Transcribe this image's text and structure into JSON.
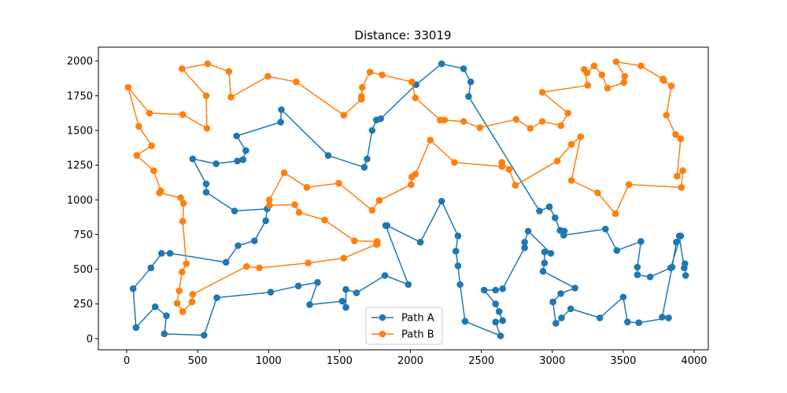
{
  "chart_data": {
    "type": "line",
    "title": "Distance: 33019",
    "xlabel": "",
    "ylabel": "",
    "xlim": [
      -200,
      4100
    ],
    "ylim": [
      -80,
      2100
    ],
    "xticks": [
      0,
      500,
      1000,
      1500,
      2000,
      2500,
      3000,
      3500,
      4000
    ],
    "yticks": [
      0,
      250,
      500,
      750,
      1000,
      1250,
      1500,
      1750,
      2000
    ],
    "grid": false,
    "legend_position": "lower-center",
    "series": [
      {
        "name": "Path A",
        "color": "#1f77b4",
        "points": [
          [
            3940,
            455
          ],
          [
            3935,
            540
          ],
          [
            3930,
            510
          ],
          [
            3895,
            740
          ],
          [
            3875,
            695
          ],
          [
            3845,
            515
          ],
          [
            3775,
            155
          ],
          [
            3820,
            150
          ],
          [
            3610,
            115
          ],
          [
            3530,
            120
          ],
          [
            3500,
            300
          ],
          [
            3335,
            150
          ],
          [
            3130,
            215
          ],
          [
            3065,
            150
          ],
          [
            3025,
            110
          ],
          [
            3005,
            265
          ],
          [
            3060,
            325
          ],
          [
            3160,
            365
          ],
          [
            2935,
            485
          ],
          [
            2945,
            545
          ],
          [
            2945,
            625
          ],
          [
            2990,
            615
          ],
          [
            2830,
            775
          ],
          [
            2805,
            695
          ],
          [
            2805,
            655
          ],
          [
            2650,
            360
          ],
          [
            2600,
            350
          ],
          [
            2520,
            350
          ],
          [
            2600,
            250
          ],
          [
            2625,
            195
          ],
          [
            2650,
            130
          ],
          [
            2600,
            120
          ],
          [
            2635,
            20
          ],
          [
            2385,
            125
          ],
          [
            2350,
            390
          ],
          [
            2335,
            525
          ],
          [
            2320,
            630
          ],
          [
            2335,
            740
          ],
          [
            2220,
            990
          ],
          [
            2070,
            695
          ],
          [
            1835,
            815
          ],
          [
            1825,
            815
          ],
          [
            1985,
            390
          ],
          [
            1820,
            455
          ],
          [
            1620,
            330
          ],
          [
            1545,
            355
          ],
          [
            1545,
            225
          ],
          [
            1520,
            270
          ],
          [
            1290,
            245
          ],
          [
            1345,
            405
          ],
          [
            1210,
            380
          ],
          [
            1015,
            335
          ],
          [
            635,
            295
          ],
          [
            545,
            25
          ],
          [
            265,
            35
          ],
          [
            280,
            165
          ],
          [
            200,
            230
          ],
          [
            65,
            80
          ],
          [
            45,
            360
          ],
          [
            170,
            510
          ],
          [
            245,
            615
          ],
          [
            305,
            615
          ],
          [
            700,
            550
          ],
          [
            785,
            670
          ],
          [
            900,
            705
          ],
          [
            980,
            850
          ],
          [
            990,
            935
          ],
          [
            760,
            920
          ],
          [
            560,
            1055
          ],
          [
            560,
            1115
          ],
          [
            465,
            1295
          ],
          [
            630,
            1260
          ],
          [
            780,
            1280
          ],
          [
            820,
            1290
          ],
          [
            840,
            1355
          ],
          [
            775,
            1460
          ],
          [
            1085,
            1560
          ],
          [
            1090,
            1650
          ],
          [
            1420,
            1320
          ],
          [
            1675,
            1235
          ],
          [
            1695,
            1295
          ],
          [
            1730,
            1500
          ],
          [
            1760,
            1575
          ],
          [
            1790,
            1585
          ],
          [
            2040,
            1830
          ],
          [
            2220,
            1980
          ],
          [
            2375,
            1945
          ],
          [
            2425,
            1850
          ],
          [
            2410,
            1745
          ],
          [
            2910,
            920
          ],
          [
            2980,
            950
          ],
          [
            3020,
            870
          ],
          [
            3055,
            780
          ],
          [
            3085,
            775
          ],
          [
            3080,
            745
          ],
          [
            3375,
            790
          ],
          [
            3455,
            635
          ],
          [
            3625,
            700
          ],
          [
            3600,
            515
          ],
          [
            3600,
            460
          ],
          [
            3690,
            445
          ],
          [
            3835,
            510
          ],
          [
            3905,
            740
          ]
        ]
      },
      {
        "name": "Path B",
        "color": "#ff7f0e",
        "points": [
          [
            1765,
            680
          ],
          [
            1765,
            700
          ],
          [
            1605,
            705
          ],
          [
            1395,
            855
          ],
          [
            1215,
            910
          ],
          [
            1185,
            965
          ],
          [
            1005,
            960
          ],
          [
            1005,
            1000
          ],
          [
            1110,
            1195
          ],
          [
            1270,
            1090
          ],
          [
            1495,
            1120
          ],
          [
            1730,
            925
          ],
          [
            1780,
            995
          ],
          [
            2005,
            1110
          ],
          [
            2010,
            1165
          ],
          [
            2035,
            1185
          ],
          [
            2140,
            1430
          ],
          [
            2310,
            1270
          ],
          [
            2645,
            1240
          ],
          [
            2645,
            1270
          ],
          [
            2695,
            1220
          ],
          [
            2740,
            1105
          ],
          [
            3035,
            1280
          ],
          [
            3135,
            1400
          ],
          [
            3200,
            1455
          ],
          [
            3135,
            1140
          ],
          [
            3320,
            1050
          ],
          [
            3445,
            900
          ],
          [
            3540,
            1110
          ],
          [
            3910,
            1090
          ],
          [
            3920,
            1210
          ],
          [
            3880,
            1170
          ],
          [
            3905,
            1440
          ],
          [
            3870,
            1470
          ],
          [
            3805,
            1610
          ],
          [
            3840,
            1820
          ],
          [
            3785,
            1860
          ],
          [
            3780,
            1870
          ],
          [
            3625,
            1965
          ],
          [
            3450,
            1995
          ],
          [
            3510,
            1890
          ],
          [
            3505,
            1845
          ],
          [
            3390,
            1805
          ],
          [
            3350,
            1900
          ],
          [
            3295,
            1965
          ],
          [
            3245,
            1915
          ],
          [
            3225,
            1940
          ],
          [
            3250,
            1825
          ],
          [
            2930,
            1775
          ],
          [
            3110,
            1625
          ],
          [
            3060,
            1535
          ],
          [
            2930,
            1565
          ],
          [
            2845,
            1515
          ],
          [
            2745,
            1580
          ],
          [
            2490,
            1520
          ],
          [
            2375,
            1565
          ],
          [
            2240,
            1575
          ],
          [
            2210,
            1575
          ],
          [
            2035,
            1735
          ],
          [
            2010,
            1850
          ],
          [
            1800,
            1900
          ],
          [
            1715,
            1920
          ],
          [
            1660,
            1810
          ],
          [
            1655,
            1745
          ],
          [
            1655,
            1725
          ],
          [
            1530,
            1610
          ],
          [
            1195,
            1850
          ],
          [
            995,
            1890
          ],
          [
            735,
            1740
          ],
          [
            720,
            1925
          ],
          [
            570,
            1980
          ],
          [
            390,
            1945
          ],
          [
            560,
            1750
          ],
          [
            565,
            1515
          ],
          [
            395,
            1615
          ],
          [
            160,
            1625
          ],
          [
            10,
            1810
          ],
          [
            85,
            1530
          ],
          [
            175,
            1390
          ],
          [
            70,
            1320
          ],
          [
            190,
            1210
          ],
          [
            240,
            1065
          ],
          [
            230,
            1050
          ],
          [
            380,
            1015
          ],
          [
            400,
            975
          ],
          [
            395,
            845
          ],
          [
            420,
            540
          ],
          [
            390,
            480
          ],
          [
            370,
            345
          ],
          [
            355,
            255
          ],
          [
            395,
            195
          ],
          [
            460,
            265
          ],
          [
            465,
            320
          ],
          [
            845,
            520
          ],
          [
            935,
            510
          ],
          [
            1280,
            545
          ],
          [
            1530,
            580
          ],
          [
            1760,
            680
          ]
        ]
      }
    ]
  }
}
